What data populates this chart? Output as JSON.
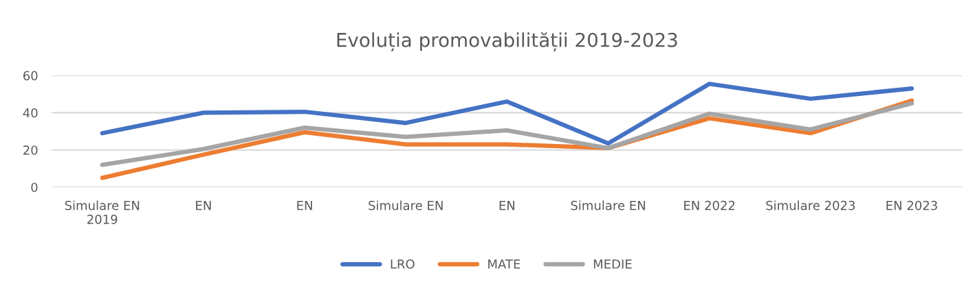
{
  "chart_data": {
    "type": "line",
    "title": "Evoluția promovabilității 2019-2023",
    "categories": [
      "Simulare EN\n2019",
      "EN",
      "EN",
      "Simulare EN",
      "EN",
      "Simulare EN",
      "EN 2022",
      "Simulare 2023",
      "EN 2023"
    ],
    "series": [
      {
        "name": "LRO",
        "color": "#4472c4",
        "values": [
          29,
          40,
          40.5,
          34.5,
          46,
          23.5,
          55.5,
          47.5,
          53
        ]
      },
      {
        "name": "MATE",
        "color": "#ed7d31",
        "values": [
          5,
          17.5,
          29.5,
          23,
          23,
          21,
          37,
          29,
          46.5
        ]
      },
      {
        "name": "MEDIE",
        "color": "#a5a5a5",
        "values": [
          12,
          20.5,
          32,
          27,
          30.5,
          21,
          39.5,
          31,
          45
        ]
      }
    ],
    "ylim": [
      0,
      60
    ],
    "yticks": [
      0,
      20,
      40,
      60
    ],
    "grid": "y",
    "legend": "bottom",
    "marker": "none",
    "line_style": "solid"
  }
}
